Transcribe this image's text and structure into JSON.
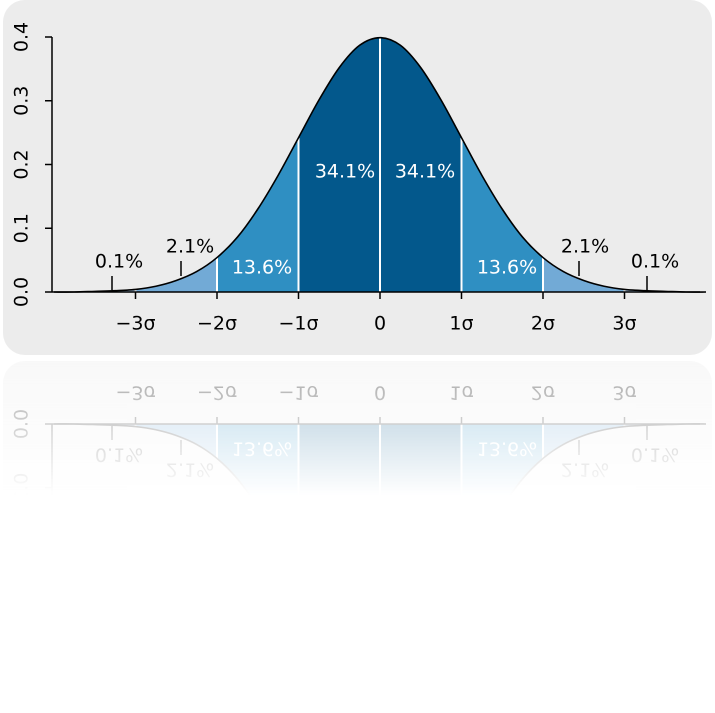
{
  "chart_data": {
    "type": "area",
    "x": [
      -4,
      -3.75,
      -3.5,
      -3.25,
      -3,
      -2.75,
      -2.5,
      -2.25,
      -2,
      -1.75,
      -1.5,
      -1.25,
      -1,
      -0.75,
      -0.5,
      -0.25,
      0,
      0.25,
      0.5,
      0.75,
      1,
      1.25,
      1.5,
      1.75,
      2,
      2.25,
      2.5,
      2.75,
      3,
      3.25,
      3.5,
      3.75,
      4
    ],
    "values": [
      0,
      0,
      0.001,
      0.002,
      0.004,
      0.009,
      0.018,
      0.032,
      0.054,
      0.086,
      0.13,
      0.183,
      0.242,
      0.301,
      0.352,
      0.387,
      0.399,
      0.387,
      0.352,
      0.301,
      0.242,
      0.183,
      0.13,
      0.086,
      0.054,
      0.032,
      0.018,
      0.009,
      0.004,
      0.002,
      0.001,
      0,
      0
    ],
    "color": "#000000",
    "regions": {
      "bounds": [
        -4,
        -3,
        -2,
        -1,
        0,
        1,
        2,
        3,
        4
      ],
      "values": [
        0.1,
        2.1,
        13.6,
        34.1,
        34.1,
        13.6,
        2.1,
        0.1
      ],
      "value_labels": [
        "0.1%",
        "2.1%",
        "13.6%",
        "34.1%",
        "34.1%",
        "13.6%",
        "2.1%",
        "0.1%"
      ],
      "colors": [
        "#a9c9e6",
        "#72aad6",
        "#2f8fc2",
        "#03588c",
        "#03588c",
        "#2f8fc2",
        "#72aad6",
        "#a9c9e6"
      ]
    },
    "xlim": [
      -4,
      4
    ],
    "xticks": [
      {
        "value": -3,
        "label": "−3σ"
      },
      {
        "value": -2,
        "label": "−2σ"
      },
      {
        "value": -1,
        "label": "−1σ"
      },
      0,
      {
        "value": 1,
        "label": "1σ"
      },
      {
        "value": 2,
        "label": "2σ"
      },
      {
        "value": 3,
        "label": "3σ"
      }
    ],
    "ylim": [
      0,
      0.4
    ],
    "yticks": [
      {
        "value": 0,
        "label": "0.0"
      },
      0.1,
      0.2,
      0.3,
      0.4
    ]
  }
}
